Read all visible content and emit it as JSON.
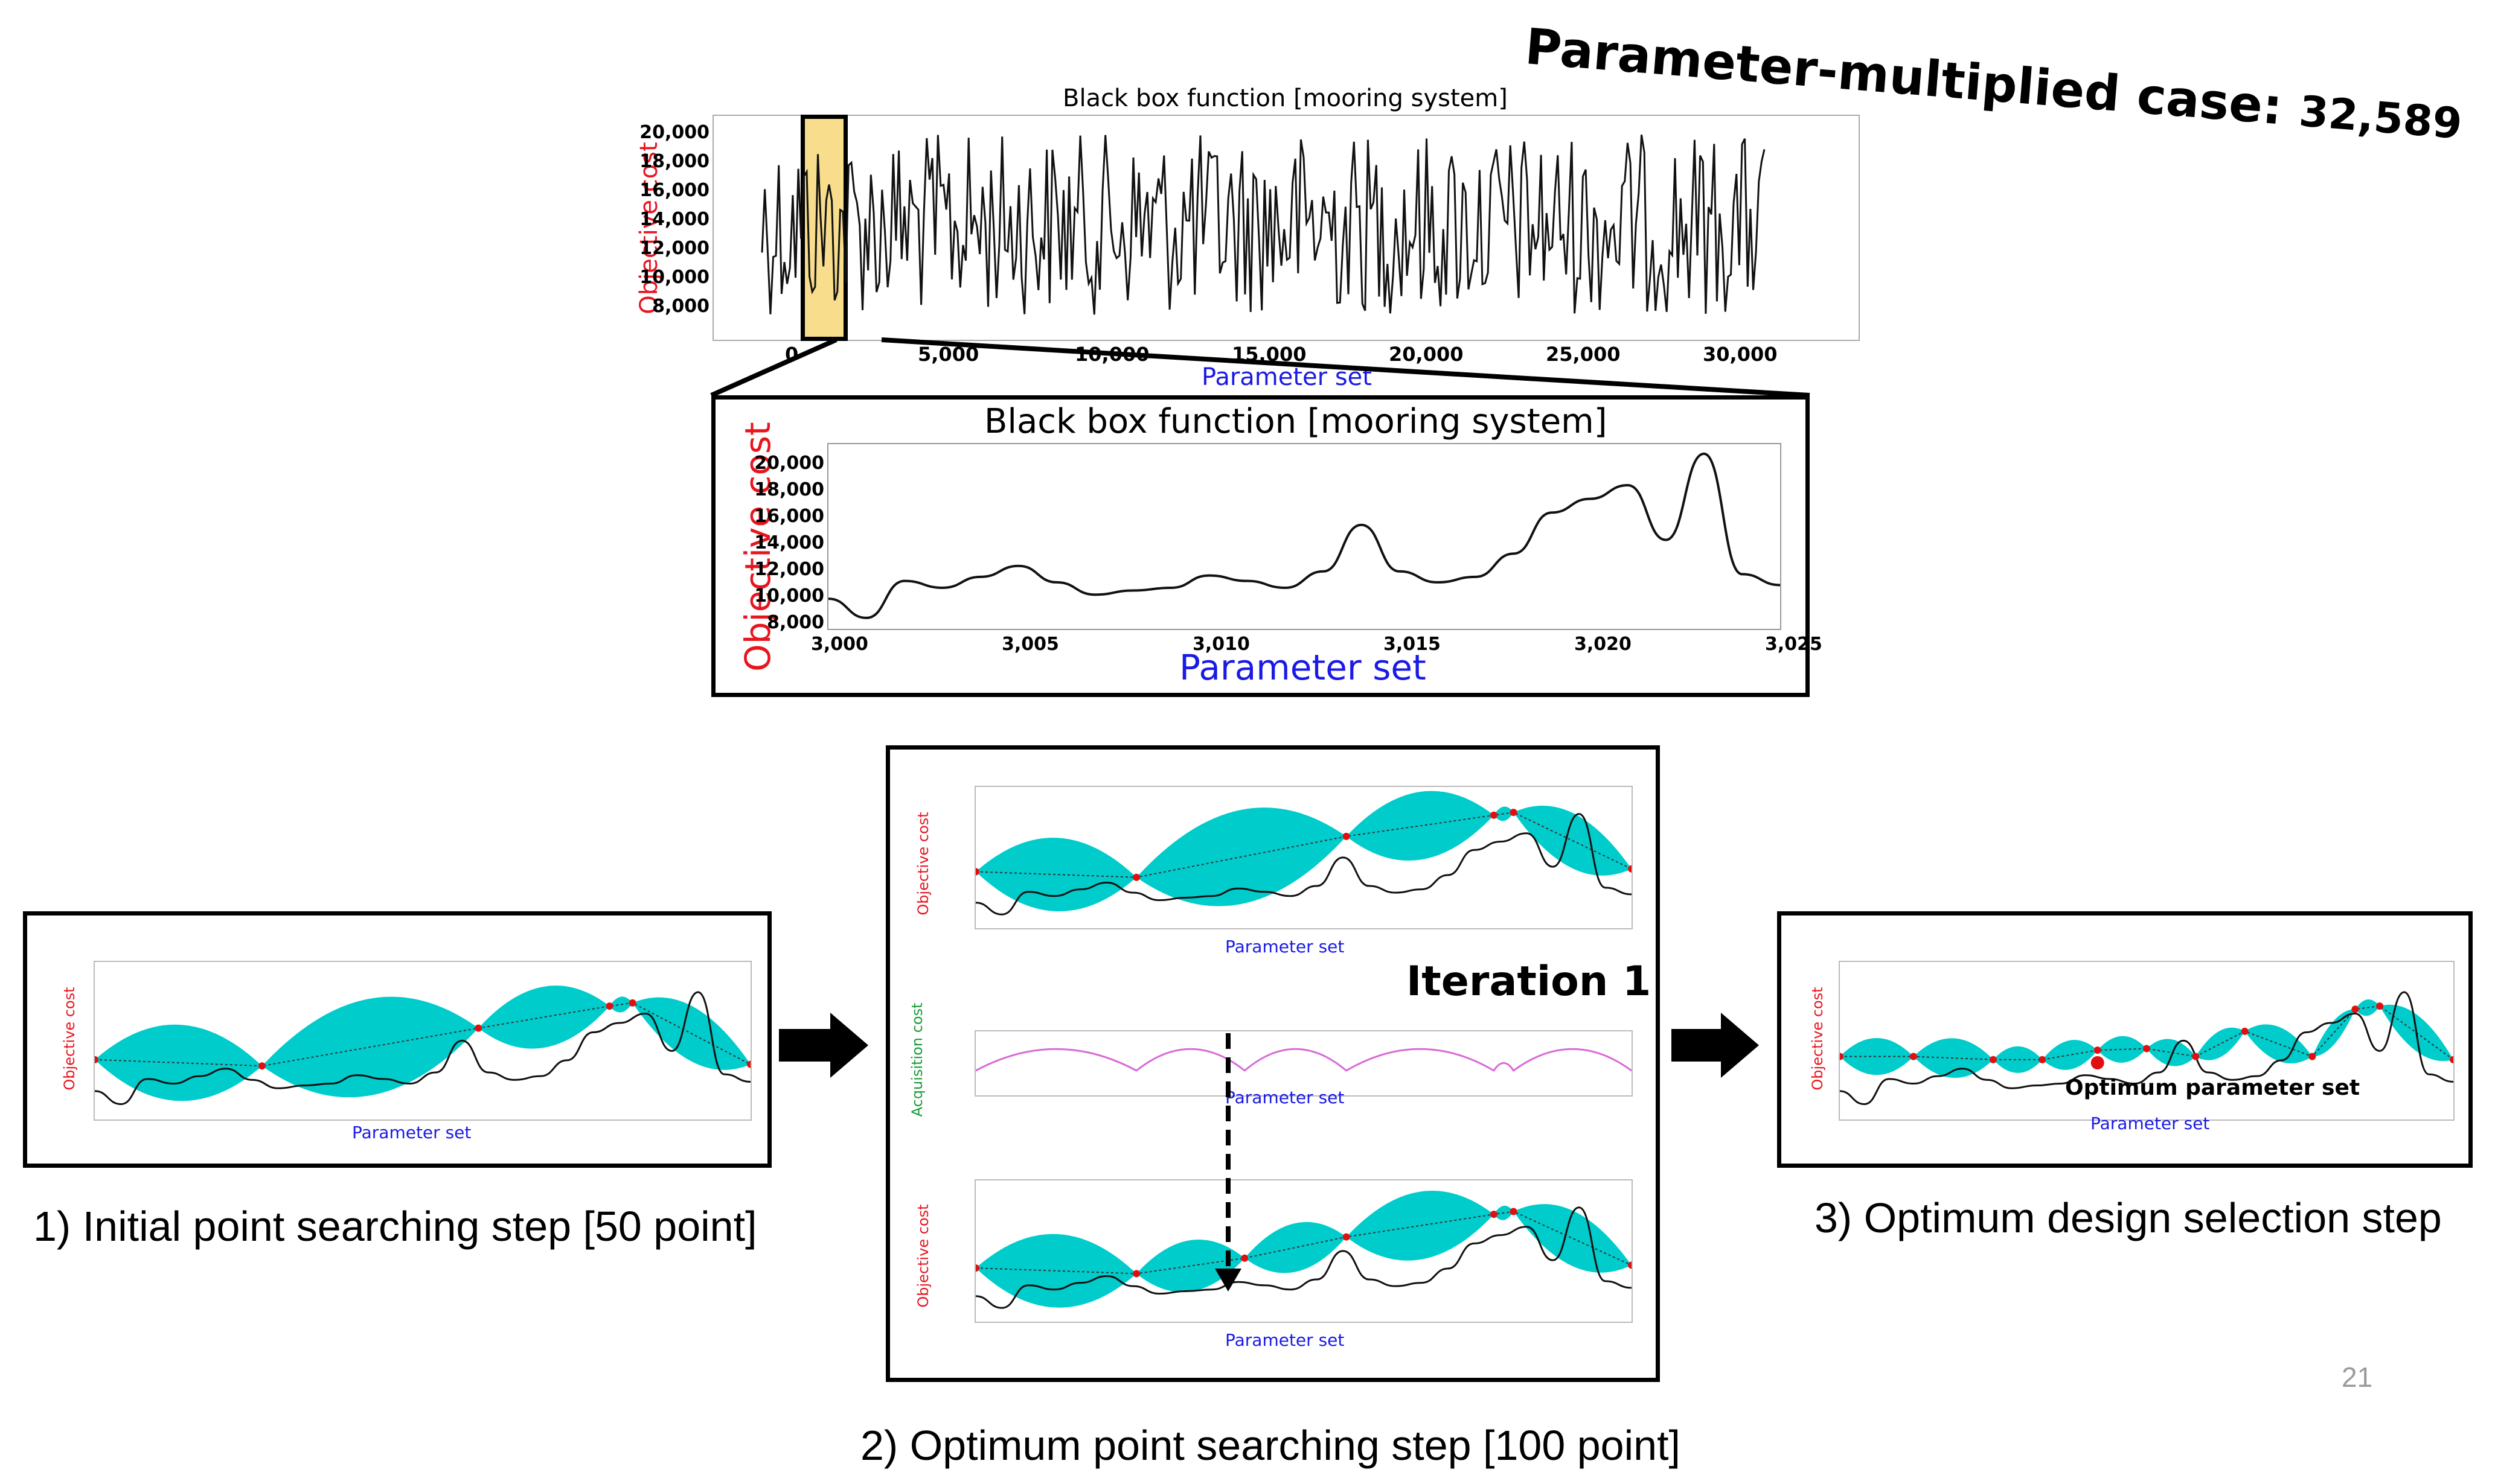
{
  "headline": {
    "prefix": "Parameter-multiplied case:",
    "value": "32,589"
  },
  "top_chart": {
    "title": "Black box function [mooring system]",
    "xlabel": "Parameter set",
    "ylabel": "Objective cost",
    "xticks": [
      "0",
      "5,000",
      "10,000",
      "15,000",
      "20,000",
      "25,000",
      "30,000"
    ],
    "yticks": [
      "20,000",
      "18,000",
      "16,000",
      "14,000",
      "12,000",
      "10,000",
      "8,000"
    ]
  },
  "zoom_chart": {
    "title": "Black box function [mooring system]",
    "xlabel": "Parameter set",
    "ylabel": "Objective cost",
    "xticks": [
      "3,000",
      "3,005",
      "3,010",
      "3,015",
      "3,020",
      "3,025"
    ],
    "yticks": [
      "20,000",
      "18,000",
      "16,000",
      "14,000",
      "12,000",
      "10,000",
      "8,000"
    ]
  },
  "panels": {
    "initial": {
      "xlabel": "Parameter set",
      "ylabel": "Objective cost"
    },
    "middle_top": {
      "xlabel": "Parameter set",
      "ylabel": "Objective cost"
    },
    "acquisition": {
      "xlabel": "Parameter set",
      "ylabel": "Acquisition cost"
    },
    "middle_bottom": {
      "xlabel": "Parameter set",
      "ylabel": "Objective cost"
    },
    "final": {
      "xlabel": "Parameter set",
      "ylabel": "Objective cost",
      "annotation": "Optimum parameter set"
    }
  },
  "iteration_label": "Iteration 1",
  "captions": {
    "step1": "1) Initial point searching step [50 point]",
    "step2": "2) Optimum point searching step [100 point]",
    "step3": "3) Optimum design selection step"
  },
  "page_number": "21",
  "colors": {
    "cost_label": "#e8141e",
    "param_label": "#1a1ae6",
    "acq_label": "#1a9a3a",
    "band": "#00cccc",
    "acq_line": "#d86ad8",
    "point": "#e01010",
    "highlight": "#f7dd8c"
  }
}
